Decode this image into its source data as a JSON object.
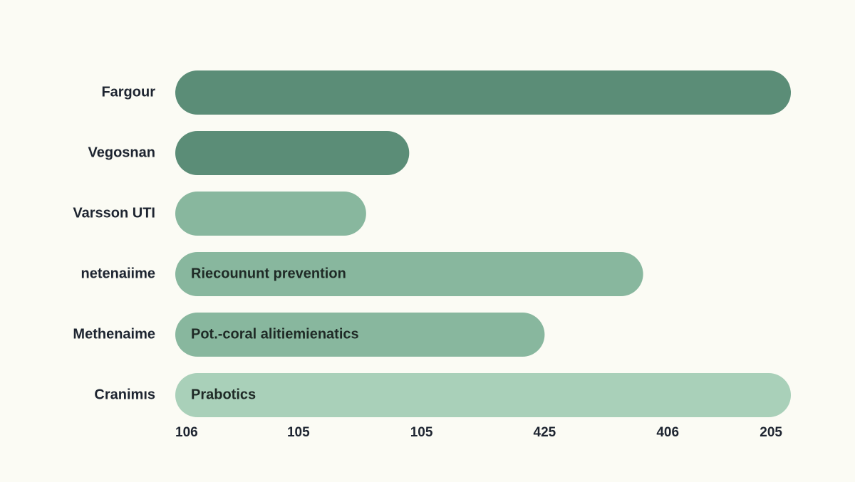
{
  "chart_data": {
    "type": "bar",
    "orientation": "horizontal",
    "categories": [
      "Fargour",
      "Vegosnan",
      "Varsson UTI",
      "netenaiime",
      "Methenaime",
      "Cranimıs"
    ],
    "values": [
      100,
      38,
      31,
      76,
      60,
      100
    ],
    "bar_labels": [
      null,
      null,
      null,
      "Riecoununt prevention",
      "Pot.-coral alitiemienatics",
      "Prabotics"
    ],
    "colors": [
      "#5b8d77",
      "#5b8d77",
      "#88b79e",
      "#88b79e",
      "#88b79e",
      "#a9d0b9"
    ],
    "xlim": [
      0,
      100
    ],
    "x_axis_labels": [
      "106",
      "105",
      "105",
      "425",
      "406",
      "205"
    ]
  }
}
